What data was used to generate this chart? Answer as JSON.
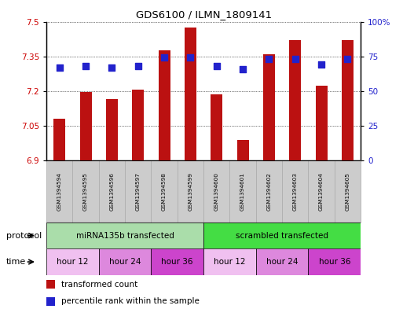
{
  "title": "GDS6100 / ILMN_1809141",
  "samples": [
    "GSM1394594",
    "GSM1394595",
    "GSM1394596",
    "GSM1394597",
    "GSM1394598",
    "GSM1394599",
    "GSM1394600",
    "GSM1394601",
    "GSM1394602",
    "GSM1394603",
    "GSM1394604",
    "GSM1394605"
  ],
  "bar_values": [
    7.08,
    7.195,
    7.165,
    7.205,
    7.375,
    7.475,
    7.185,
    6.99,
    7.36,
    7.42,
    7.225,
    7.42
  ],
  "percentile_values": [
    67,
    68,
    67,
    68,
    74,
    74,
    68,
    66,
    73,
    73,
    69,
    73
  ],
  "bar_color": "#bb1111",
  "percentile_color": "#2222cc",
  "ymin": 6.9,
  "ymax": 7.5,
  "yticks": [
    6.9,
    7.05,
    7.2,
    7.35,
    7.5
  ],
  "ytick_labels": [
    "6.9",
    "7.05",
    "7.2",
    "7.35",
    "7.5"
  ],
  "y2min": 0,
  "y2max": 100,
  "y2ticks": [
    0,
    25,
    50,
    75,
    100
  ],
  "y2ticklabels": [
    "0",
    "25",
    "50",
    "75",
    "100%"
  ],
  "protocol_groups": [
    {
      "label": "miRNA135b transfected",
      "start": 0,
      "end": 6,
      "color": "#aaddaa"
    },
    {
      "label": "scrambled transfected",
      "start": 6,
      "end": 12,
      "color": "#44dd44"
    }
  ],
  "time_groups": [
    {
      "label": "hour 12",
      "start": 0,
      "end": 2,
      "color": "#f0c0f0"
    },
    {
      "label": "hour 24",
      "start": 2,
      "end": 4,
      "color": "#dd88dd"
    },
    {
      "label": "hour 36",
      "start": 4,
      "end": 6,
      "color": "#cc44cc"
    },
    {
      "label": "hour 12",
      "start": 6,
      "end": 8,
      "color": "#f0c0f0"
    },
    {
      "label": "hour 24",
      "start": 8,
      "end": 10,
      "color": "#dd88dd"
    },
    {
      "label": "hour 36",
      "start": 10,
      "end": 12,
      "color": "#cc44cc"
    }
  ],
  "legend_items": [
    {
      "label": "transformed count",
      "color": "#bb1111"
    },
    {
      "label": "percentile rank within the sample",
      "color": "#2222cc"
    }
  ],
  "protocol_label": "protocol",
  "time_label": "time",
  "tick_label_color_left": "#cc0000",
  "tick_label_color_right": "#2222cc",
  "background_color": "#ffffff",
  "bar_width": 0.45,
  "percentile_marker_size": 40,
  "sample_bg_color": "#cccccc",
  "sample_border_color": "#aaaaaa"
}
